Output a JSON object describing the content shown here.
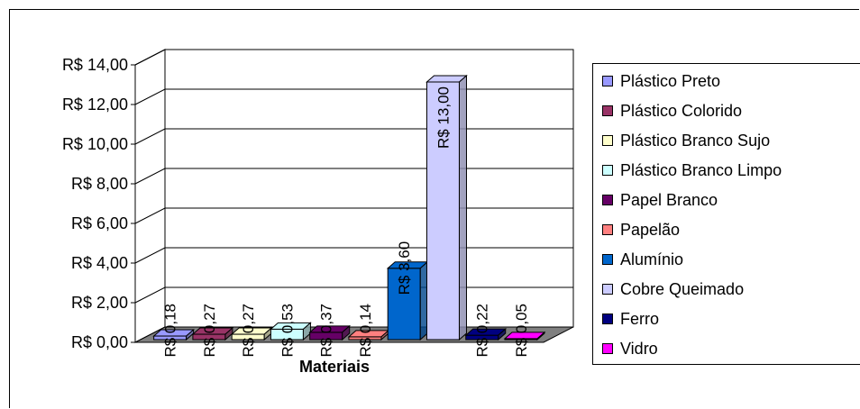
{
  "chart_data": {
    "type": "bar",
    "xlabel": "Materiais",
    "ylim": [
      0,
      14
    ],
    "y_ticks": [
      "R$ 0,00",
      "R$ 2,00",
      "R$ 4,00",
      "R$ 6,00",
      "R$ 8,00",
      "R$ 10,00",
      "R$ 12,00",
      "R$ 14,00"
    ],
    "grid": true,
    "legend_position": "right",
    "series": [
      {
        "name": "Plástico Preto",
        "value": 0.18,
        "label": "R$ 0,18",
        "color": "#9999FF"
      },
      {
        "name": "Plástico Colorido",
        "value": 0.27,
        "label": "R$ 0,27",
        "color": "#993366"
      },
      {
        "name": "Plástico Branco Sujo",
        "value": 0.27,
        "label": "R$ 0,27",
        "color": "#FFFFCC"
      },
      {
        "name": "Plástico Branco Limpo",
        "value": 0.53,
        "label": "R$ 0,53",
        "color": "#CCFFFF"
      },
      {
        "name": "Papel Branco",
        "value": 0.37,
        "label": "R$ 0,37",
        "color": "#660066"
      },
      {
        "name": "Papelão",
        "value": 0.14,
        "label": "R$ 0,14",
        "color": "#FF8080"
      },
      {
        "name": "Alumínio",
        "value": 3.6,
        "label": "R$ 3,60",
        "color": "#0066CC"
      },
      {
        "name": "Cobre Queimado",
        "value": 13.0,
        "label": "R$ 13,00",
        "color": "#CCCCFF"
      },
      {
        "name": "Ferro",
        "value": 0.22,
        "label": "R$ 0,22",
        "color": "#000080"
      },
      {
        "name": "Vidro",
        "value": 0.05,
        "label": "R$ 0,05",
        "color": "#FF00FF"
      }
    ]
  }
}
